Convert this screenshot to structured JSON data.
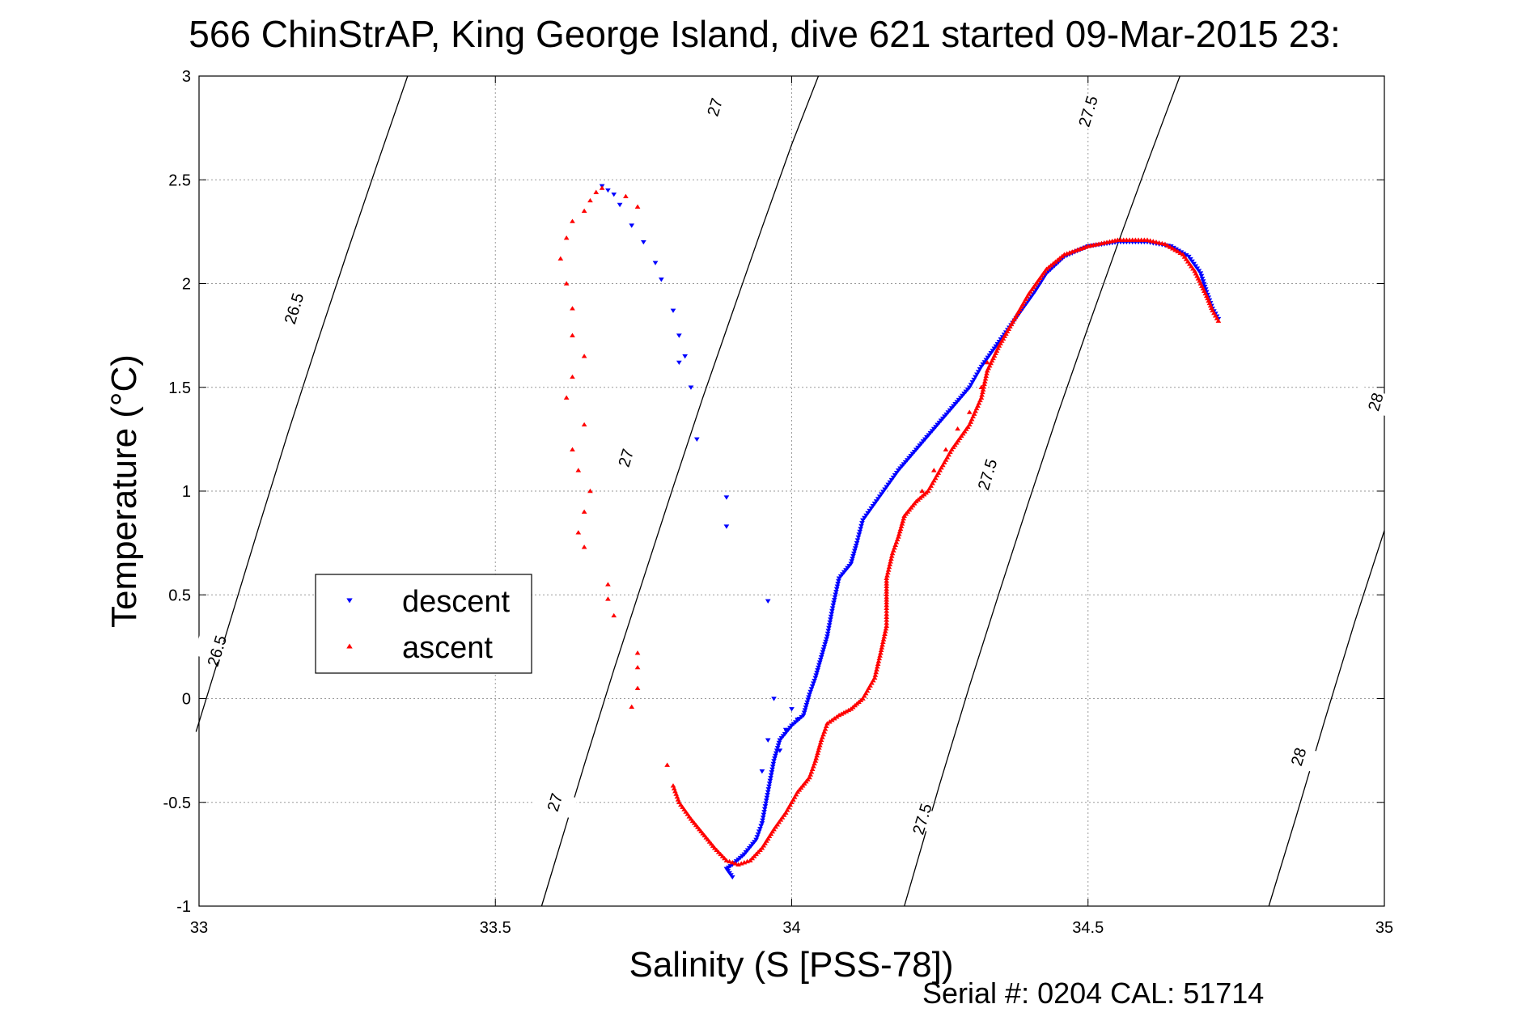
{
  "chart_data": {
    "type": "scatter",
    "title": "566 ChinStrAP, King George Island, dive 621 started 09-Mar-2015 23:",
    "xlabel": "Salinity (S [PSS-78])",
    "ylabel": "Temperature (°C)",
    "footer": "Serial #: 0204  CAL: 51714",
    "xlim": [
      33,
      35
    ],
    "ylim": [
      -1,
      3
    ],
    "xticks": [
      33,
      33.5,
      34,
      34.5,
      35
    ],
    "xtick_labels": [
      "33",
      "33.5",
      "34",
      "34.5",
      "35"
    ],
    "yticks": [
      -1,
      -0.5,
      0,
      0.5,
      1,
      1.5,
      2,
      2.5,
      3
    ],
    "ytick_labels": [
      "-1",
      "-0.5",
      "0",
      "0.5",
      "1",
      "1.5",
      "2",
      "2.5",
      "3"
    ],
    "grid": true,
    "legend_position": "center-left",
    "legend": [
      {
        "name": "descent",
        "color": "#0000ff",
        "marker": "triangle-down"
      },
      {
        "name": "ascent",
        "color": "#ff0000",
        "marker": "triangle-up"
      }
    ],
    "isopycnals": [
      {
        "label": "26.5",
        "points": [
          [
            32.995,
            -0.16
          ],
          [
            33.05,
            0.35
          ],
          [
            33.1,
            0.82
          ],
          [
            33.15,
            1.28
          ],
          [
            33.2,
            1.72
          ],
          [
            33.25,
            2.15
          ],
          [
            33.3,
            2.57
          ],
          [
            33.352,
            3.0
          ]
        ],
        "label_at": [
          [
            33.03,
            0.23
          ],
          [
            33.16,
            1.88
          ]
        ]
      },
      {
        "label": "27",
        "points": [
          [
            33.578,
            -1.0
          ],
          [
            33.65,
            -0.32
          ],
          [
            33.7,
            0.14
          ],
          [
            33.75,
            0.58
          ],
          [
            33.8,
            1.02
          ],
          [
            33.85,
            1.45
          ],
          [
            33.9,
            1.86
          ],
          [
            33.95,
            2.27
          ],
          [
            34.0,
            2.67
          ],
          [
            34.045,
            3.0
          ]
        ],
        "label_at": [
          [
            33.6,
            -0.5
          ],
          [
            33.72,
            1.16
          ],
          [
            33.87,
            2.85
          ]
        ]
      },
      {
        "label": "27.5",
        "points": [
          [
            34.19,
            -1.0
          ],
          [
            34.25,
            -0.41
          ],
          [
            34.3,
            0.06
          ],
          [
            34.35,
            0.51
          ],
          [
            34.4,
            0.95
          ],
          [
            34.45,
            1.38
          ],
          [
            34.5,
            1.79
          ],
          [
            34.55,
            2.19
          ],
          [
            34.6,
            2.58
          ],
          [
            34.655,
            3.0
          ]
        ],
        "label_at": [
          [
            34.22,
            -0.58
          ],
          [
            34.33,
            1.08
          ],
          [
            34.5,
            2.83
          ]
        ]
      },
      {
        "label": "28",
        "points": [
          [
            34.805,
            -1.0
          ],
          [
            34.85,
            -0.58
          ],
          [
            34.9,
            -0.1
          ],
          [
            34.95,
            0.37
          ],
          [
            35.0,
            0.81
          ]
        ],
        "label_at": [
          [
            34.855,
            -0.28
          ],
          [
            34.985,
            1.43
          ]
        ]
      }
    ],
    "series": [
      {
        "name": "descent",
        "color": "#0000ff",
        "marker": "triangle-down",
        "path": [
          [
            34.72,
            1.83
          ],
          [
            34.71,
            1.88
          ],
          [
            34.7,
            1.96
          ],
          [
            34.69,
            2.05
          ],
          [
            34.67,
            2.13
          ],
          [
            34.64,
            2.18
          ],
          [
            34.6,
            2.2
          ],
          [
            34.55,
            2.2
          ],
          [
            34.5,
            2.18
          ],
          [
            34.46,
            2.13
          ],
          [
            34.43,
            2.05
          ],
          [
            34.41,
            1.96
          ],
          [
            34.39,
            1.88
          ],
          [
            34.37,
            1.8
          ],
          [
            34.35,
            1.72
          ],
          [
            34.32,
            1.6
          ],
          [
            34.3,
            1.5
          ],
          [
            34.27,
            1.4
          ],
          [
            34.24,
            1.3
          ],
          [
            34.21,
            1.2
          ],
          [
            34.18,
            1.1
          ],
          [
            34.16,
            1.02
          ],
          [
            34.14,
            0.94
          ],
          [
            34.12,
            0.86
          ],
          [
            34.11,
            0.75
          ],
          [
            34.1,
            0.65
          ],
          [
            34.08,
            0.58
          ],
          [
            34.07,
            0.45
          ],
          [
            34.06,
            0.3
          ],
          [
            34.05,
            0.2
          ],
          [
            34.04,
            0.1
          ],
          [
            34.03,
            0.02
          ],
          [
            34.02,
            -0.08
          ],
          [
            34.0,
            -0.13
          ],
          [
            33.98,
            -0.2
          ],
          [
            33.97,
            -0.3
          ],
          [
            33.96,
            -0.45
          ],
          [
            33.95,
            -0.6
          ],
          [
            33.94,
            -0.68
          ],
          [
            33.92,
            -0.75
          ],
          [
            33.9,
            -0.8
          ],
          [
            33.89,
            -0.82
          ],
          [
            33.9,
            -0.86
          ]
        ],
        "scatter": [
          [
            33.68,
            2.47
          ],
          [
            33.69,
            2.45
          ],
          [
            33.7,
            2.43
          ],
          [
            33.71,
            2.38
          ],
          [
            33.73,
            2.28
          ],
          [
            33.75,
            2.2
          ],
          [
            33.77,
            2.1
          ],
          [
            33.78,
            2.02
          ],
          [
            33.8,
            1.87
          ],
          [
            33.81,
            1.75
          ],
          [
            33.81,
            1.62
          ],
          [
            33.82,
            1.65
          ],
          [
            33.83,
            1.5
          ],
          [
            33.84,
            1.25
          ],
          [
            33.89,
            0.97
          ],
          [
            33.89,
            0.83
          ],
          [
            33.96,
            0.47
          ],
          [
            33.97,
            0.0
          ],
          [
            33.96,
            -0.2
          ],
          [
            33.95,
            -0.35
          ],
          [
            33.98,
            -0.25
          ],
          [
            33.99,
            -0.15
          ],
          [
            34.0,
            -0.05
          ],
          [
            34.01,
            -0.1
          ]
        ]
      },
      {
        "name": "ascent",
        "color": "#ff0000",
        "marker": "triangle-up",
        "path": [
          [
            34.72,
            1.82
          ],
          [
            34.71,
            1.87
          ],
          [
            34.7,
            1.94
          ],
          [
            34.68,
            2.06
          ],
          [
            34.66,
            2.14
          ],
          [
            34.63,
            2.19
          ],
          [
            34.6,
            2.21
          ],
          [
            34.55,
            2.21
          ],
          [
            34.5,
            2.18
          ],
          [
            34.46,
            2.14
          ],
          [
            34.43,
            2.07
          ],
          [
            34.4,
            1.95
          ],
          [
            34.38,
            1.85
          ],
          [
            34.35,
            1.7
          ],
          [
            34.33,
            1.58
          ],
          [
            34.32,
            1.45
          ],
          [
            34.3,
            1.32
          ],
          [
            34.27,
            1.2
          ],
          [
            34.25,
            1.1
          ],
          [
            34.23,
            1.0
          ],
          [
            34.21,
            0.95
          ],
          [
            34.19,
            0.88
          ],
          [
            34.18,
            0.78
          ],
          [
            34.17,
            0.7
          ],
          [
            34.16,
            0.58
          ],
          [
            34.16,
            0.45
          ],
          [
            34.16,
            0.35
          ],
          [
            34.15,
            0.22
          ],
          [
            34.14,
            0.1
          ],
          [
            34.12,
            0.0
          ],
          [
            34.1,
            -0.05
          ],
          [
            34.08,
            -0.08
          ],
          [
            34.06,
            -0.12
          ],
          [
            34.05,
            -0.2
          ],
          [
            34.04,
            -0.3
          ],
          [
            34.03,
            -0.38
          ],
          [
            34.01,
            -0.45
          ],
          [
            33.99,
            -0.55
          ],
          [
            33.97,
            -0.63
          ],
          [
            33.95,
            -0.72
          ],
          [
            33.93,
            -0.78
          ],
          [
            33.91,
            -0.8
          ],
          [
            33.89,
            -0.78
          ],
          [
            33.87,
            -0.72
          ],
          [
            33.85,
            -0.65
          ],
          [
            33.83,
            -0.58
          ],
          [
            33.81,
            -0.5
          ],
          [
            33.8,
            -0.42
          ]
        ],
        "scatter": [
          [
            33.79,
            -0.32
          ],
          [
            33.73,
            -0.04
          ],
          [
            33.74,
            0.05
          ],
          [
            33.74,
            0.15
          ],
          [
            33.74,
            0.22
          ],
          [
            33.7,
            0.4
          ],
          [
            33.69,
            0.48
          ],
          [
            33.69,
            0.55
          ],
          [
            33.65,
            0.73
          ],
          [
            33.64,
            0.8
          ],
          [
            33.65,
            0.9
          ],
          [
            33.66,
            1.0
          ],
          [
            33.64,
            1.1
          ],
          [
            33.63,
            1.2
          ],
          [
            33.65,
            1.32
          ],
          [
            33.62,
            1.45
          ],
          [
            33.63,
            1.55
          ],
          [
            33.65,
            1.65
          ],
          [
            33.63,
            1.75
          ],
          [
            33.63,
            1.88
          ],
          [
            33.62,
            2.0
          ],
          [
            33.61,
            2.12
          ],
          [
            33.62,
            2.22
          ],
          [
            33.63,
            2.3
          ],
          [
            33.65,
            2.35
          ],
          [
            33.66,
            2.4
          ],
          [
            33.67,
            2.44
          ],
          [
            33.68,
            2.46
          ],
          [
            33.72,
            2.42
          ],
          [
            33.74,
            2.37
          ],
          [
            34.22,
            1.0
          ],
          [
            34.24,
            1.1
          ],
          [
            34.26,
            1.2
          ],
          [
            34.28,
            1.3
          ],
          [
            34.3,
            1.38
          ],
          [
            34.32,
            1.5
          ],
          [
            34.33,
            1.62
          ]
        ]
      }
    ]
  }
}
